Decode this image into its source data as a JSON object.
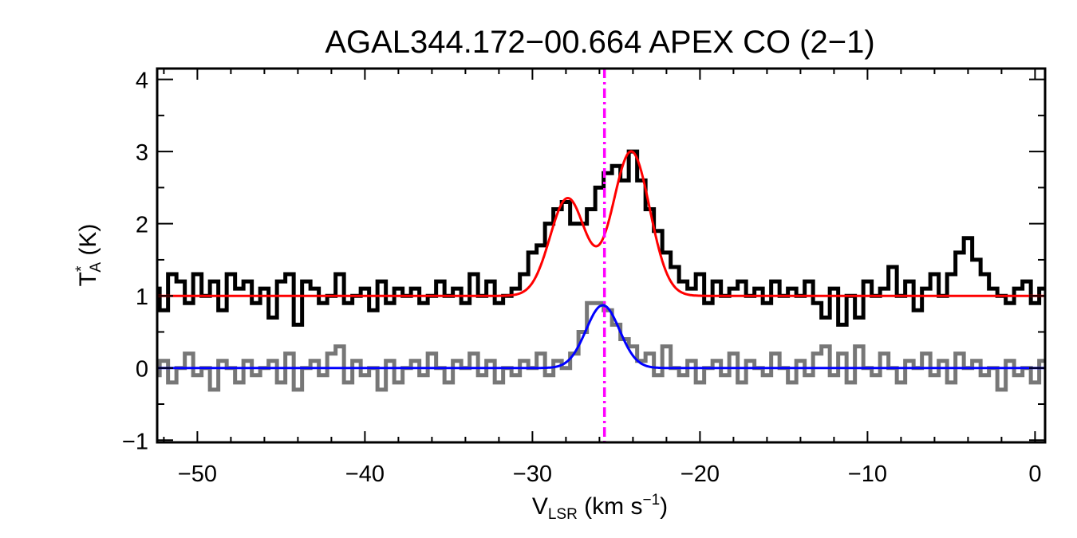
{
  "chart_data": {
    "type": "line",
    "title": "AGAL344.172−00.664  APEX CO (2−1)",
    "xlabel": {
      "main": "V",
      "sub": "LSR",
      "rest": " (km s",
      "sup": "−1",
      "end": ")"
    },
    "ylabel": {
      "main": "T",
      "sup": "*",
      "sub": "A",
      "rest": " (K)"
    },
    "xlim": [
      -52.4,
      0.6
    ],
    "ylim": [
      -1.03,
      4.15
    ],
    "xticks": [
      -50,
      -40,
      -30,
      -20,
      -10,
      0
    ],
    "xtick_labels": [
      "−50",
      "−40",
      "−30",
      "−20",
      "−10",
      "0"
    ],
    "yticks": [
      -1,
      0,
      1,
      2,
      3,
      4
    ],
    "ytick_labels": [
      "−1",
      "0",
      "1",
      "2",
      "3",
      "4"
    ],
    "grid": false,
    "x": [
      -52.5,
      -52,
      -51.5,
      -51,
      -50.5,
      -50,
      -49.5,
      -49,
      -48.5,
      -48,
      -47.5,
      -47,
      -46.5,
      -46,
      -45.5,
      -45,
      -44.5,
      -44,
      -43.5,
      -43,
      -42.5,
      -42,
      -41.5,
      -41,
      -40.5,
      -40,
      -39.5,
      -39,
      -38.5,
      -38,
      -37.5,
      -37,
      -36.5,
      -36,
      -35.5,
      -35,
      -34.5,
      -34,
      -33.5,
      -33,
      -32.5,
      -32,
      -31.5,
      -31,
      -30.5,
      -30,
      -29.5,
      -29,
      -28.5,
      -28,
      -27.5,
      -27,
      -26.5,
      -26,
      -25.5,
      -25,
      -24.5,
      -24,
      -23.5,
      -23,
      -22.5,
      -22,
      -21.5,
      -21,
      -20.5,
      -20,
      -19.5,
      -19,
      -18.5,
      -18,
      -17.5,
      -17,
      -16.5,
      -16,
      -15.5,
      -15,
      -14.5,
      -14,
      -13.5,
      -13,
      -12.5,
      -12,
      -11.5,
      -11,
      -10.5,
      -10,
      -9.5,
      -9,
      -8.5,
      -8,
      -7.5,
      -7,
      -6.5,
      -6,
      -5.5,
      -5,
      -4.5,
      -4,
      -3.5,
      -3,
      -2.5,
      -2,
      -1.5,
      -1,
      -0.5,
      0,
      0.5
    ],
    "series": [
      {
        "color": "#000000",
        "style": "step",
        "values": [
          1.1,
          0.8,
          1.3,
          1.2,
          0.9,
          1.3,
          1.0,
          1.2,
          0.8,
          1.3,
          1.1,
          1.2,
          0.9,
          1.1,
          0.7,
          1.2,
          1.3,
          0.6,
          1.2,
          1.1,
          0.9,
          1.0,
          1.3,
          0.9,
          1.0,
          1.1,
          0.8,
          1.2,
          0.9,
          1.1,
          1.0,
          1.1,
          0.9,
          1.0,
          1.2,
          1.0,
          1.1,
          0.9,
          1.3,
          1.0,
          1.2,
          0.9,
          1.0,
          1.1,
          1.3,
          1.6,
          1.7,
          2.0,
          2.2,
          2.3,
          2.0,
          2.0,
          2.2,
          2.5,
          2.7,
          2.8,
          2.6,
          3.0,
          2.6,
          2.2,
          1.9,
          1.6,
          1.4,
          1.2,
          1.1,
          1.3,
          0.9,
          1.2,
          1.0,
          1.1,
          1.2,
          1.0,
          1.1,
          0.9,
          1.2,
          1.0,
          1.1,
          1.0,
          1.2,
          0.9,
          0.7,
          1.1,
          0.6,
          1.0,
          0.7,
          1.2,
          1.0,
          1.1,
          1.4,
          1.0,
          1.2,
          0.8,
          1.1,
          1.3,
          1.0,
          1.3,
          1.6,
          1.8,
          1.5,
          1.3,
          1.1,
          1.0,
          0.9,
          1.1,
          1.2,
          0.9,
          1.1
        ]
      },
      {
        "color": "#777777",
        "style": "step",
        "values": [
          -0.1,
          0.1,
          -0.2,
          0.0,
          0.2,
          -0.1,
          0.0,
          -0.3,
          0.1,
          0.0,
          -0.2,
          0.1,
          -0.1,
          0.0,
          0.1,
          -0.2,
          0.2,
          -0.3,
          0.0,
          0.1,
          -0.1,
          0.2,
          0.3,
          -0.2,
          0.1,
          -0.1,
          0.0,
          -0.3,
          0.1,
          -0.2,
          0.0,
          0.1,
          -0.1,
          0.2,
          0.0,
          -0.2,
          0.1,
          0.0,
          0.2,
          -0.1,
          0.1,
          -0.2,
          0.0,
          -0.1,
          0.1,
          0.0,
          0.2,
          -0.1,
          0.1,
          0.0,
          0.2,
          0.5,
          0.9,
          0.9,
          0.8,
          0.6,
          0.4,
          0.3,
          0.1,
          0.2,
          -0.1,
          0.3,
          0.0,
          -0.1,
          0.1,
          -0.2,
          0.0,
          0.1,
          -0.1,
          0.2,
          -0.2,
          0.1,
          0.0,
          -0.1,
          0.2,
          0.0,
          -0.2,
          0.1,
          -0.1,
          0.2,
          0.3,
          -0.1,
          0.2,
          -0.2,
          0.3,
          0.0,
          -0.1,
          0.2,
          0.0,
          -0.2,
          0.1,
          0.0,
          0.2,
          -0.1,
          0.1,
          -0.2,
          0.2,
          0.0,
          0.1,
          -0.1,
          0.0,
          -0.3,
          0.1,
          -0.1,
          0.0,
          -0.2,
          0.1
        ]
      }
    ],
    "fits": [
      {
        "color": "#ff0000",
        "baseline": 1.0,
        "components": [
          {
            "amplitude": 1.35,
            "center": -27.9,
            "sigma": 1.05
          },
          {
            "amplitude": 2.0,
            "center": -24.1,
            "sigma": 1.1
          }
        ]
      },
      {
        "color": "#0000ff",
        "baseline": 0.0,
        "components": [
          {
            "amplitude": 0.87,
            "center": -25.8,
            "sigma": 1.0
          }
        ]
      }
    ],
    "vline": {
      "x": -25.7,
      "color": "#ff00ff",
      "style": "dash-dot"
    }
  }
}
